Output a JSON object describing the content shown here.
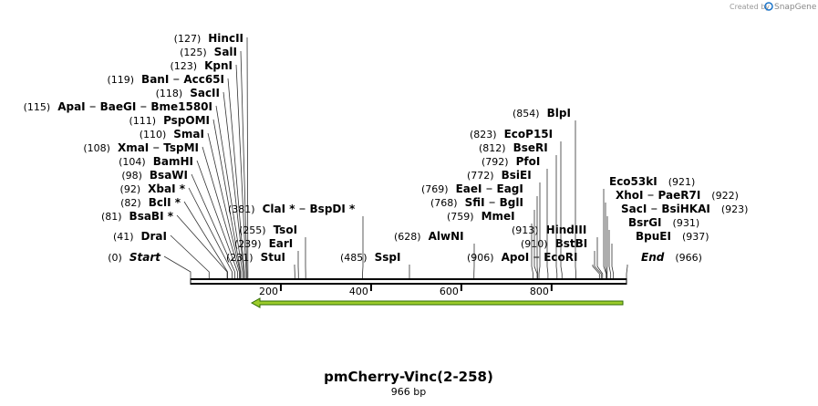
{
  "branding": {
    "prefix": "Created by",
    "name": "SnapGene"
  },
  "map": {
    "title": "pmCherry-Vinc(2-258)",
    "length": {
      "value": 966,
      "label": "966 bp"
    },
    "ticks": [
      200,
      400,
      600,
      800
    ],
    "sites": [
      {
        "position": {
          "value": 127,
          "label": "(127)"
        },
        "enzymes": [
          "HincII"
        ]
      },
      {
        "position": {
          "value": 125,
          "label": "(125)"
        },
        "enzymes": [
          "SalI"
        ]
      },
      {
        "position": {
          "value": 123,
          "label": "(123)"
        },
        "enzymes": [
          "KpnI"
        ]
      },
      {
        "position": {
          "value": 119,
          "label": "(119)"
        },
        "enzymes": [
          "BanI",
          "Acc65I"
        ]
      },
      {
        "position": {
          "value": 118,
          "label": "(118)"
        },
        "enzymes": [
          "SacII"
        ]
      },
      {
        "position": {
          "value": 115,
          "label": "(115)"
        },
        "enzymes": [
          "ApaI",
          "BaeGI",
          "Bme1580I"
        ]
      },
      {
        "position": {
          "value": 111,
          "label": "(111)"
        },
        "enzymes": [
          "PspOMI"
        ]
      },
      {
        "position": {
          "value": 110,
          "label": "(110)"
        },
        "enzymes": [
          "SmaI"
        ]
      },
      {
        "position": {
          "value": 108,
          "label": "(108)"
        },
        "enzymes": [
          "XmaI",
          "TspMI"
        ]
      },
      {
        "position": {
          "value": 104,
          "label": "(104)"
        },
        "enzymes": [
          "BamHI"
        ]
      },
      {
        "position": {
          "value": 98,
          "label": "(98)"
        },
        "enzymes": [
          "BsaWI"
        ]
      },
      {
        "position": {
          "value": 92,
          "label": "(92)"
        },
        "enzymes": [
          "XbaI *"
        ]
      },
      {
        "position": {
          "value": 82,
          "label": "(82)"
        },
        "enzymes": [
          "BclI *"
        ]
      },
      {
        "position": {
          "value": 81,
          "label": "(81)"
        },
        "enzymes": [
          "BsaBI *"
        ]
      },
      {
        "position": {
          "value": 41,
          "label": "(41)"
        },
        "enzymes": [
          "DraI"
        ]
      },
      {
        "position": {
          "value": 0,
          "label": "(0)"
        },
        "enzymes": [
          "Start"
        ]
      },
      {
        "position": {
          "value": 381,
          "label": "(381)"
        },
        "enzymes": [
          "ClaI *",
          "BspDI *"
        ]
      },
      {
        "position": {
          "value": 255,
          "label": "(255)"
        },
        "enzymes": [
          "TsoI"
        ]
      },
      {
        "position": {
          "value": 239,
          "label": "(239)"
        },
        "enzymes": [
          "EarI"
        ]
      },
      {
        "position": {
          "value": 231,
          "label": "(231)"
        },
        "enzymes": [
          "StuI"
        ]
      },
      {
        "position": {
          "value": 485,
          "label": "(485)"
        },
        "enzymes": [
          "SspI"
        ]
      },
      {
        "position": {
          "value": 628,
          "label": "(628)"
        },
        "enzymes": [
          "AlwNI"
        ]
      },
      {
        "position": {
          "value": 906,
          "label": "(906)"
        },
        "enzymes": [
          "ApoI",
          "EcoRI"
        ]
      },
      {
        "position": {
          "value": 910,
          "label": "(910)"
        },
        "enzymes": [
          "BstBI"
        ]
      },
      {
        "position": {
          "value": 913,
          "label": "(913)"
        },
        "enzymes": [
          "HindIII"
        ]
      },
      {
        "position": {
          "value": 759,
          "label": "(759)"
        },
        "enzymes": [
          "MmeI"
        ]
      },
      {
        "position": {
          "value": 768,
          "label": "(768)"
        },
        "enzymes": [
          "SfiI",
          "BglI"
        ]
      },
      {
        "position": {
          "value": 769,
          "label": "(769)"
        },
        "enzymes": [
          "EaeI",
          "EagI"
        ]
      },
      {
        "position": {
          "value": 772,
          "label": "(772)"
        },
        "enzymes": [
          "BsiEI"
        ]
      },
      {
        "position": {
          "value": 792,
          "label": "(792)"
        },
        "enzymes": [
          "PfoI"
        ]
      },
      {
        "position": {
          "value": 812,
          "label": "(812)"
        },
        "enzymes": [
          "BseRI"
        ]
      },
      {
        "position": {
          "value": 823,
          "label": "(823)"
        },
        "enzymes": [
          "EcoP15I"
        ]
      },
      {
        "position": {
          "value": 854,
          "label": "(854)"
        },
        "enzymes": [
          "BlpI"
        ]
      },
      {
        "position": {
          "value": 921,
          "label": "(921)"
        },
        "enzymes": [
          "Eco53kI"
        ]
      },
      {
        "position": {
          "value": 922,
          "label": "(922)"
        },
        "enzymes": [
          "XhoI",
          "PaeR7I"
        ]
      },
      {
        "position": {
          "value": 923,
          "label": "(923)"
        },
        "enzymes": [
          "SacI",
          "BsiHKAI"
        ]
      },
      {
        "position": {
          "value": 931,
          "label": "(931)"
        },
        "enzymes": [
          "BsrGI"
        ]
      },
      {
        "position": {
          "value": 937,
          "label": "(937)"
        },
        "enzymes": [
          "BpuEI"
        ]
      },
      {
        "position": {
          "value": 966,
          "label": "(966)"
        },
        "enzymes": [
          "End"
        ]
      }
    ]
  }
}
